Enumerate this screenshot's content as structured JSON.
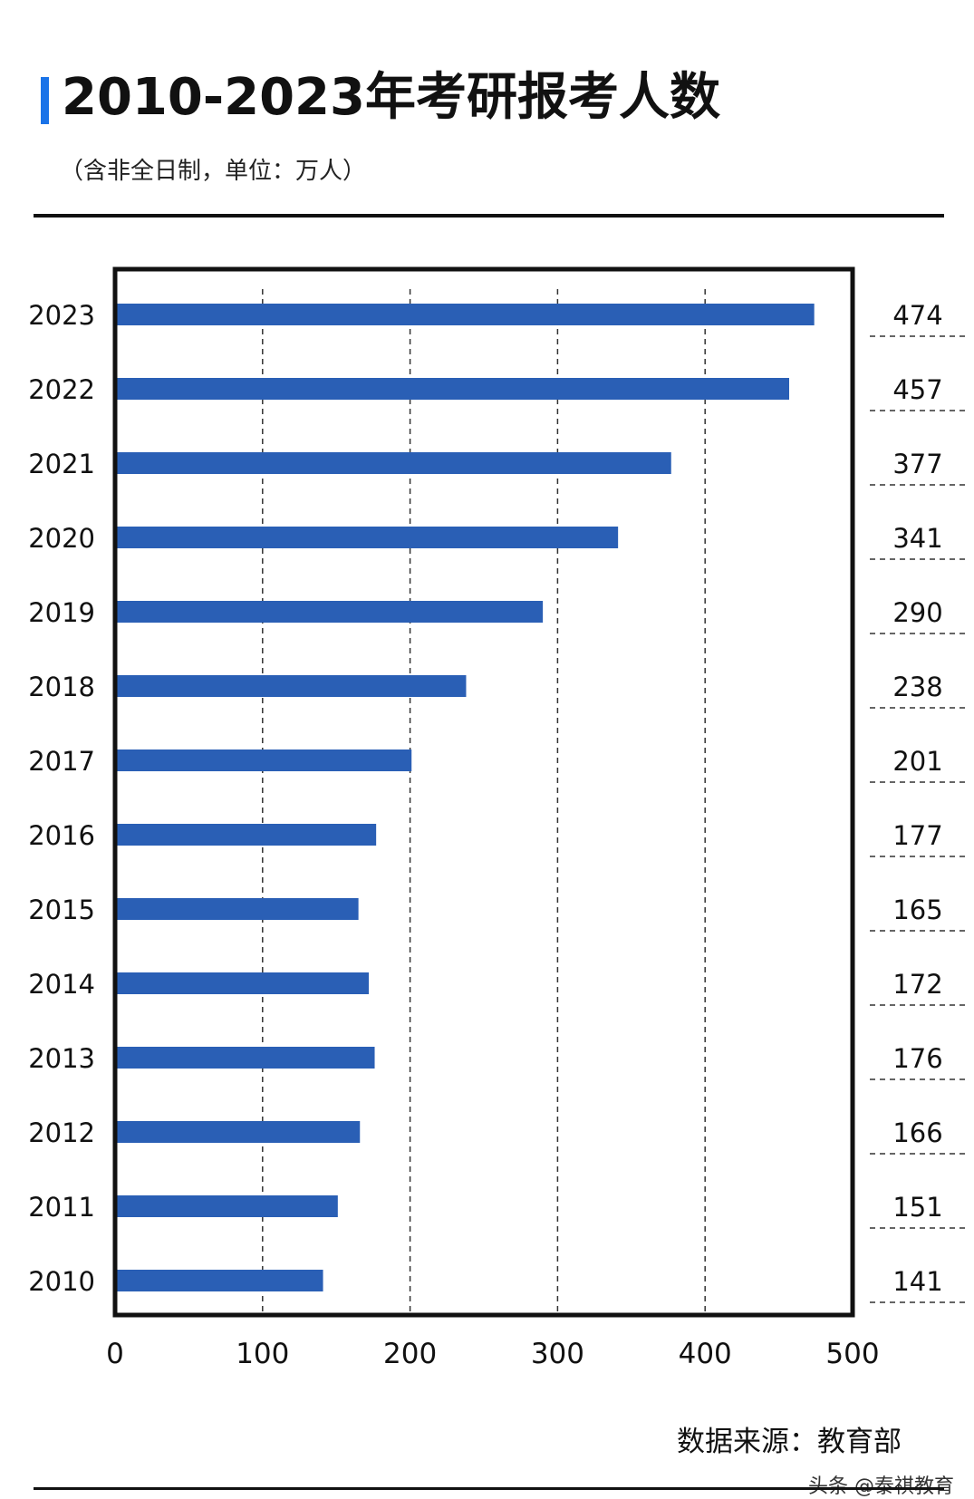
{
  "header": {
    "title": "2010-2023年考研报考人数",
    "subtitle": "（含非全日制，单位：万人）"
  },
  "footer": {
    "source": "数据来源：教育部",
    "watermark": "头条 @泰祺教育"
  },
  "chart_data": {
    "type": "bar",
    "orientation": "horizontal",
    "title": "2010-2023年考研报考人数",
    "subtitle": "（含非全日制，单位：万人）",
    "categories": [
      "2023",
      "2022",
      "2021",
      "2020",
      "2019",
      "2018",
      "2017",
      "2016",
      "2015",
      "2014",
      "2013",
      "2012",
      "2011",
      "2010"
    ],
    "values": [
      474,
      457,
      377,
      341,
      290,
      238,
      201,
      177,
      165,
      172,
      176,
      166,
      151,
      141
    ],
    "xlim": [
      0,
      500
    ],
    "x_ticks": [
      0,
      100,
      200,
      300,
      400,
      500
    ],
    "grid": "vertical-dashed",
    "bar_color": "#2a5fb5",
    "value_labels_position": "right-column"
  }
}
